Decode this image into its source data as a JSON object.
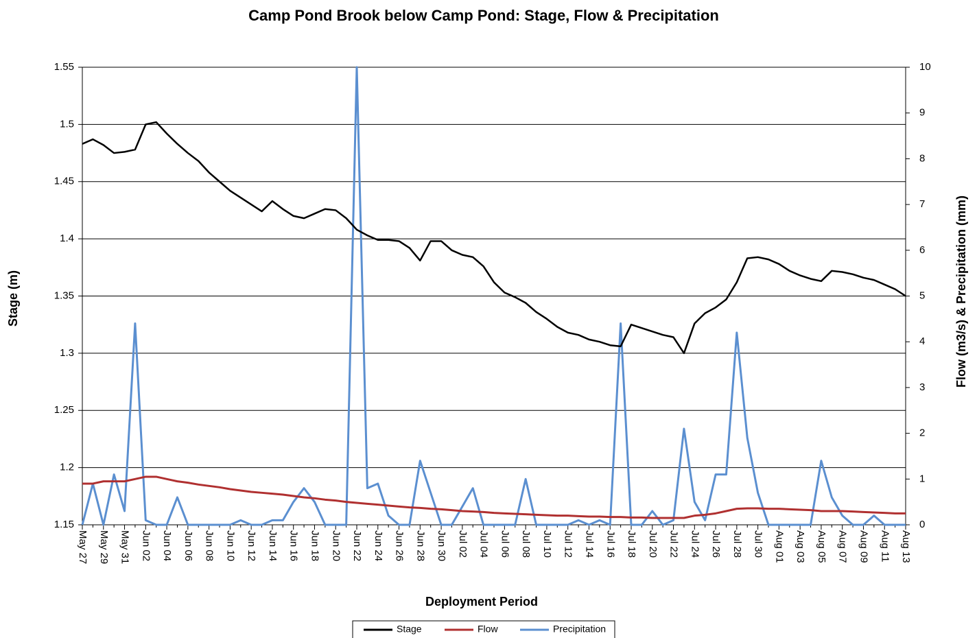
{
  "chart_data": {
    "type": "line",
    "title": "Camp Pond Brook below Camp Pond: Stage, Flow & Precipitation",
    "x_label": "Deployment Period",
    "y_label": "Stage (m)",
    "y2_label": "Flow (m3/s) & Precipitation (mm)",
    "categories": [
      "May 27",
      null,
      "May 29",
      null,
      "May 31",
      null,
      "Jun 02",
      null,
      "Jun 04",
      null,
      "Jun 06",
      null,
      "Jun 08",
      null,
      "Jun 10",
      null,
      "Jun 12",
      null,
      "Jun 14",
      null,
      "Jun 16",
      null,
      "Jun 18",
      null,
      "Jun 20",
      null,
      "Jun 22",
      null,
      "Jun 24",
      null,
      "Jun 26",
      null,
      "Jun 28",
      null,
      "Jun 30",
      null,
      "Jul 02",
      null,
      "Jul 04",
      null,
      "Jul 06",
      null,
      "Jul 08",
      null,
      "Jul 10",
      null,
      "Jul 12",
      null,
      "Jul 14",
      null,
      "Jul 16",
      null,
      "Jul 18",
      null,
      "Jul 20",
      null,
      "Jul 22",
      null,
      "Jul 24",
      null,
      "Jul 26",
      null,
      "Jul 28",
      null,
      "Jul 30",
      null,
      "Aug 01",
      null,
      "Aug 03",
      null,
      "Aug 05",
      null,
      "Aug 07",
      null,
      "Aug 09",
      null,
      "Aug 11",
      null,
      "Aug 13"
    ],
    "series": [
      {
        "name": "Stage",
        "color": "#000000",
        "values": [
          1.483,
          1.487,
          1.482,
          1.475,
          1.476,
          1.478,
          1.5,
          1.502,
          1.492,
          1.483,
          1.475,
          1.468,
          1.458,
          1.45,
          1.442,
          1.436,
          1.43,
          1.424,
          1.433,
          1.426,
          1.42,
          1.418,
          1.422,
          1.426,
          1.425,
          1.418,
          1.408,
          1.403,
          1.399,
          1.399,
          1.398,
          1.392,
          1.381,
          1.398,
          1.398,
          1.39,
          1.386,
          1.384,
          1.376,
          1.362,
          1.353,
          1.349,
          1.344,
          1.336,
          1.33,
          1.323,
          1.318,
          1.316,
          1.312,
          1.31,
          1.307,
          1.306,
          1.325,
          1.322,
          1.319,
          1.316,
          1.314,
          1.3,
          1.326,
          1.335,
          1.34,
          1.347,
          1.362,
          1.383,
          1.384,
          1.382,
          1.378,
          1.372,
          1.368,
          1.365,
          1.363,
          1.372,
          1.371,
          1.369,
          1.366,
          1.364,
          1.36,
          1.356,
          1.35
        ]
      },
      {
        "name": "Flow",
        "color": "#b03030",
        "axis": "y2",
        "values": [
          0.9,
          0.9,
          0.95,
          0.95,
          0.95,
          1.0,
          1.05,
          1.05,
          1.0,
          0.95,
          0.92,
          0.88,
          0.85,
          0.82,
          0.78,
          0.75,
          0.72,
          0.7,
          0.68,
          0.66,
          0.63,
          0.6,
          0.58,
          0.55,
          0.53,
          0.5,
          0.48,
          0.46,
          0.44,
          0.42,
          0.4,
          0.38,
          0.37,
          0.35,
          0.34,
          0.32,
          0.3,
          0.29,
          0.28,
          0.26,
          0.25,
          0.24,
          0.23,
          0.22,
          0.21,
          0.2,
          0.2,
          0.19,
          0.18,
          0.18,
          0.17,
          0.17,
          0.16,
          0.16,
          0.15,
          0.15,
          0.15,
          0.15,
          0.2,
          0.22,
          0.25,
          0.3,
          0.35,
          0.36,
          0.36,
          0.35,
          0.35,
          0.34,
          0.33,
          0.32,
          0.3,
          0.3,
          0.3,
          0.29,
          0.28,
          0.27,
          0.26,
          0.25,
          0.25
        ]
      },
      {
        "name": "Precipitation",
        "color": "#5b8fd0",
        "axis": "y2",
        "values": [
          0,
          0.9,
          0,
          1.1,
          0.3,
          4.4,
          0.1,
          0,
          0,
          0.6,
          0,
          0,
          0,
          0,
          0,
          0.1,
          0,
          0,
          0.1,
          0.1,
          0.5,
          0.8,
          0.5,
          0,
          0,
          0,
          10,
          0.8,
          0.9,
          0.2,
          0,
          0,
          1.4,
          0.7,
          0,
          0,
          0.4,
          0.8,
          0,
          0,
          0,
          0,
          1.0,
          0,
          0,
          0,
          0,
          0.1,
          0,
          0.1,
          0,
          4.4,
          0,
          0,
          0.3,
          0,
          0.1,
          2.1,
          0.5,
          0.1,
          1.1,
          1.1,
          4.2,
          1.9,
          0.7,
          0,
          0,
          0,
          0,
          0,
          1.4,
          0.6,
          0.2,
          0,
          0,
          0.2,
          0,
          0,
          0
        ]
      }
    ],
    "ylim": [
      1.15,
      1.55
    ],
    "yticks": [
      1.15,
      1.2,
      1.25,
      1.3,
      1.35,
      1.4,
      1.45,
      1.5,
      1.55
    ],
    "y2lim": [
      0,
      10
    ],
    "y2ticks": [
      0,
      1,
      2,
      3,
      4,
      5,
      6,
      7,
      8,
      9,
      10
    ],
    "grid": true,
    "legend": "bottom"
  }
}
